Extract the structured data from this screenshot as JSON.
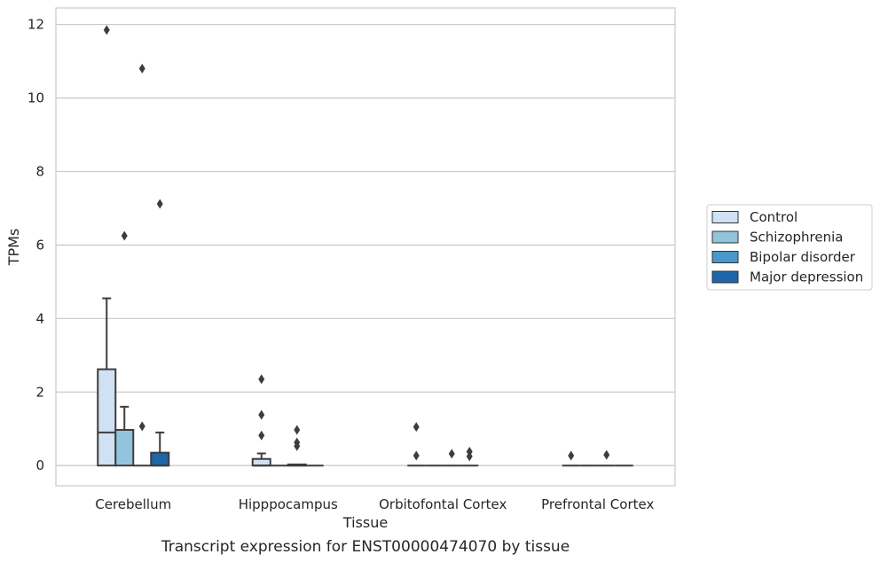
{
  "chart_data": {
    "type": "box",
    "caption": "Transcript expression for ENST00000474070 by tissue",
    "xlabel": "Tissue",
    "ylabel": "TPMs",
    "ylim": [
      -0.55,
      12.45
    ],
    "yticks": [
      0,
      2,
      4,
      6,
      8,
      10,
      12
    ],
    "grid": "horizontal",
    "legend_position": "right",
    "categories": [
      "Cerebellum",
      "Hipppocampus",
      "Orbitofontal Cortex",
      "Prefrontal Cortex"
    ],
    "series": [
      {
        "name": "Control",
        "color": "#cfe1f2",
        "boxes": [
          {
            "q1": 0,
            "median": 0.9,
            "q3": 2.62,
            "whisker_low": 0,
            "whisker_high": 4.55,
            "outliers": [
              11.85
            ]
          },
          {
            "q1": 0,
            "median": 0,
            "q3": 0.18,
            "whisker_low": 0,
            "whisker_high": 0.33,
            "outliers": [
              2.35,
              1.38,
              0.82
            ]
          },
          {
            "q1": 0,
            "median": 0,
            "q3": 0,
            "whisker_low": 0,
            "whisker_high": 0,
            "outliers": [
              1.05,
              0.27
            ]
          },
          {
            "q1": 0,
            "median": 0,
            "q3": 0,
            "whisker_low": 0,
            "whisker_high": 0,
            "outliers": [
              0.27
            ]
          }
        ]
      },
      {
        "name": "Schizophrenia",
        "color": "#93c4de",
        "boxes": [
          {
            "q1": 0,
            "median": 0.97,
            "q3": 0.97,
            "whisker_low": 0,
            "whisker_high": 1.6,
            "outliers": [
              6.25
            ]
          },
          {
            "q1": 0,
            "median": 0,
            "q3": 0,
            "whisker_low": 0,
            "whisker_high": 0,
            "outliers": []
          },
          {
            "q1": 0,
            "median": 0,
            "q3": 0,
            "whisker_low": 0,
            "whisker_high": 0,
            "outliers": []
          },
          {
            "q1": 0,
            "median": 0,
            "q3": 0,
            "whisker_low": 0,
            "whisker_high": 0,
            "outliers": []
          }
        ]
      },
      {
        "name": "Bipolar disorder",
        "color": "#4a98c9",
        "boxes": [
          {
            "q1": 0,
            "median": 0,
            "q3": 0,
            "whisker_low": 0,
            "whisker_high": 0,
            "outliers": [
              1.07,
              10.8
            ]
          },
          {
            "q1": 0,
            "median": 0,
            "q3": 0.03,
            "whisker_low": 0,
            "whisker_high": 0.03,
            "outliers": [
              0.97,
              0.63,
              0.53
            ]
          },
          {
            "q1": 0,
            "median": 0,
            "q3": 0,
            "whisker_low": 0,
            "whisker_high": 0,
            "outliers": [
              0.32
            ]
          },
          {
            "q1": 0,
            "median": 0,
            "q3": 0,
            "whisker_low": 0,
            "whisker_high": 0,
            "outliers": [
              0.29
            ]
          }
        ]
      },
      {
        "name": "Major depression",
        "color": "#1f65a8",
        "boxes": [
          {
            "q1": 0,
            "median": 0,
            "q3": 0.35,
            "whisker_low": 0,
            "whisker_high": 0.9,
            "outliers": [
              7.12
            ]
          },
          {
            "q1": 0,
            "median": 0,
            "q3": 0,
            "whisker_low": 0,
            "whisker_high": 0,
            "outliers": []
          },
          {
            "q1": 0,
            "median": 0,
            "q3": 0,
            "whisker_low": 0,
            "whisker_high": 0,
            "outliers": [
              0.38,
              0.25
            ]
          },
          {
            "q1": 0,
            "median": 0,
            "q3": 0,
            "whisker_low": 0,
            "whisker_high": 0,
            "outliers": []
          }
        ]
      }
    ]
  }
}
